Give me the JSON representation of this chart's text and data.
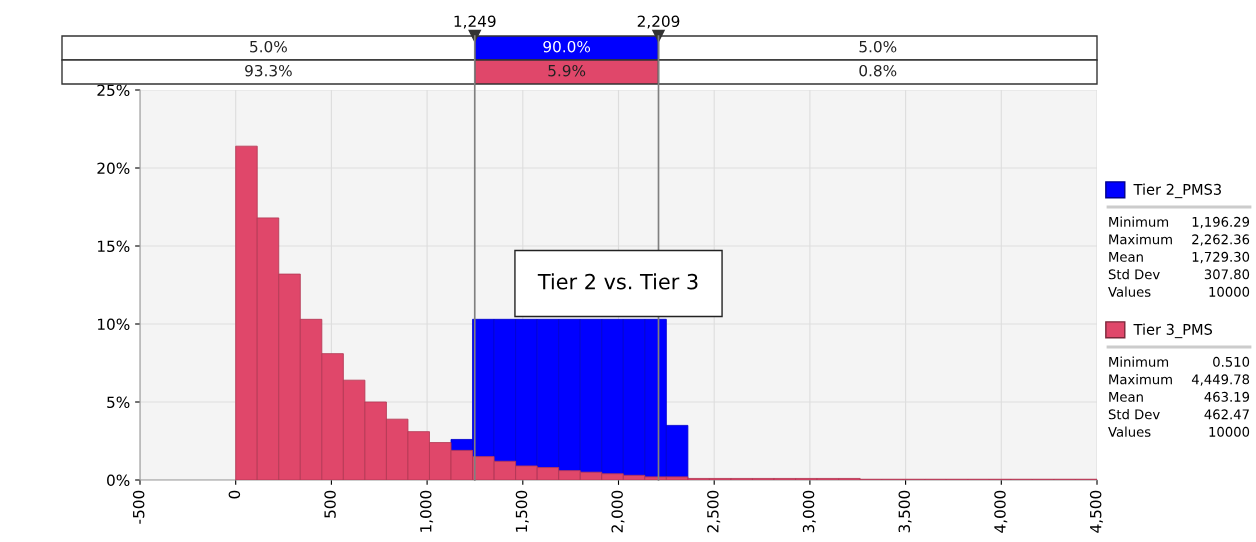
{
  "chart_data": {
    "type": "histogram",
    "title": "Tier 2 vs. Tier 3",
    "bins": [
      0,
      112.5,
      225,
      337.5,
      450,
      562.5,
      675,
      787.5,
      900,
      1012.5,
      1125,
      1237.5,
      1350,
      1462.5,
      1575,
      1687.5,
      1800,
      1912.5,
      2025,
      2137.5,
      2250,
      2362.5,
      2475,
      2587.5,
      2700,
      2812.5,
      2925,
      3037.5,
      3150,
      3262.5,
      3375,
      3487.5,
      3600,
      3712.5,
      3825,
      3937.5,
      4050,
      4162.5,
      4275,
      4387.5,
      4500
    ],
    "series": [
      {
        "name": "Tier 3_PMS",
        "color": "#e0476a",
        "values": [
          21.4,
          16.8,
          13.2,
          10.3,
          8.1,
          6.4,
          5.0,
          3.9,
          3.1,
          2.4,
          1.9,
          1.5,
          1.2,
          0.9,
          0.8,
          0.6,
          0.5,
          0.4,
          0.3,
          0.2,
          0.2,
          0.1,
          0.1,
          0.1,
          0.1,
          0.1,
          0.1,
          0.1,
          0.1,
          0.05,
          0.05,
          0.05,
          0.05,
          0.05,
          0.05,
          0.05,
          0.05,
          0.05,
          0.05,
          0.05
        ]
      },
      {
        "name": "Tier 2_PMS3",
        "color": "#0000ff",
        "bins": [
          1125,
          1237.5,
          1350,
          1462.5,
          1575,
          1687.5,
          1800,
          1912.5,
          2025,
          2137.5,
          2250,
          2362.5
        ],
        "values": [
          2.6,
          10.3,
          10.3,
          10.3,
          10.3,
          10.3,
          10.3,
          10.3,
          10.3,
          10.3,
          3.5
        ]
      }
    ],
    "xlim": [
      -500,
      4500
    ],
    "xticks": [
      -500,
      0,
      500,
      {
        "value": 1000,
        "label": "1,000"
      },
      {
        "value": 1500,
        "label": "1,500"
      },
      {
        "value": 2000,
        "label": "2,000"
      },
      {
        "value": 2500,
        "label": "2,500"
      },
      {
        "value": 3000,
        "label": "3,000"
      },
      {
        "value": 3500,
        "label": "3,500"
      },
      {
        "value": 4000,
        "label": "4,000"
      },
      {
        "value": 4500,
        "label": "4,500"
      }
    ],
    "ylim": [
      0,
      25
    ],
    "yticks": [
      {
        "value": 0,
        "label": "0%"
      },
      {
        "value": 5,
        "label": "5%"
      },
      {
        "value": 10,
        "label": "10%"
      },
      {
        "value": 15,
        "label": "15%"
      },
      {
        "value": 20,
        "label": "20%"
      },
      {
        "value": 25,
        "label": "25%"
      }
    ],
    "ref_lines": [
      {
        "axis": "x",
        "value": 1249,
        "label": "1,249",
        "color": "#808080"
      },
      {
        "axis": "x",
        "value": 2209,
        "label": "2,209",
        "color": "#808080"
      }
    ],
    "annotations": [
      "5.0%",
      "90.0%",
      "5.0%",
      "93.3%",
      "5.9%",
      "0.8%",
      "Minimum",
      "1,196.29",
      "Maximum",
      "2,262.36",
      "Mean",
      "1,729.30",
      "Std Dev",
      "307.80",
      "Values",
      "10000",
      "Minimum",
      "0.510",
      "Maximum",
      "4,449.78",
      "Mean",
      "463.19",
      "Std Dev",
      "462.47",
      "Values",
      "10000"
    ],
    "grid": true,
    "legend": "right"
  }
}
